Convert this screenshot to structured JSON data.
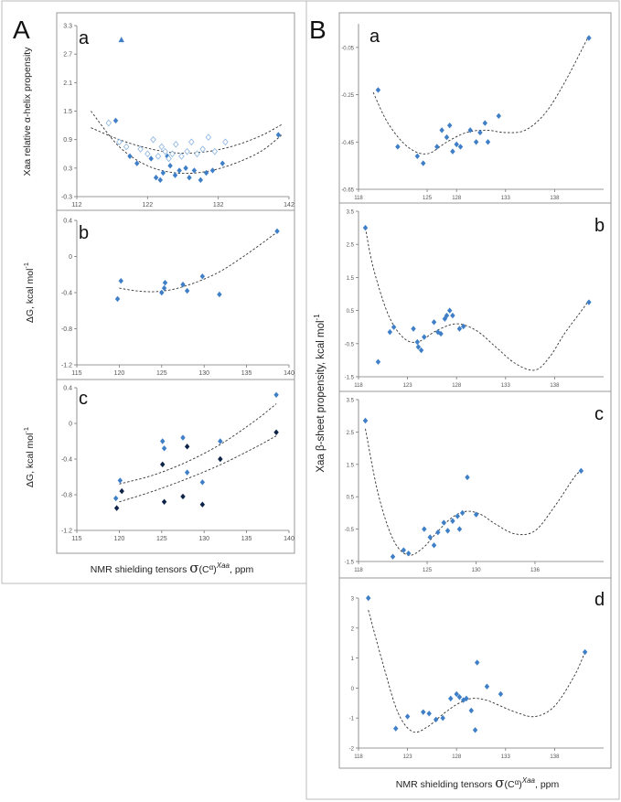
{
  "figure": {
    "panel_A_label": "A",
    "panel_B_label": "B",
    "xlabel_prefix": "NMR shielding tensors ",
    "xlabel_symbol": "σ",
    "xlabel_inner": "(C",
    "xlabel_alpha": "α",
    "xlabel_close": ")",
    "xlabel_sup": "Xaa",
    "xlabel_suffix": ", ppm",
    "B_ylabel_main": "Xaa β-sheet propensity, kcal mol",
    "B_ylabel_sup": "-1"
  },
  "colors": {
    "marker": "#3f7fc7",
    "marker_light": "#8ab4e0",
    "marker_dark": "#0d2347",
    "line": "#333333",
    "frame": "#bbbbbb"
  },
  "chart_data": [
    {
      "id": "Aa",
      "type": "scatter",
      "subplot_letter": "a",
      "ylabel": "Xaa relative α-helix propensity",
      "xlim": [
        112,
        142
      ],
      "ylim": [
        -0.3,
        3.3
      ],
      "xticks": [
        112,
        122,
        132,
        142
      ],
      "xtick_labels": [
        "112",
        "122",
        "132",
        "142"
      ],
      "yticks": [
        -0.3,
        0.3,
        0.9,
        1.5,
        2.1,
        2.7,
        3.3
      ],
      "ytick_labels": [
        "-0.3",
        "0.3",
        "0.9",
        "1.5",
        "2.1",
        "2.7",
        "3.3"
      ],
      "series": [
        {
          "name": "filled",
          "style": "diamond",
          "x": [
            117.5,
            119.5,
            120.5,
            122.5,
            123.2,
            123.8,
            124.2,
            124.8,
            125.2,
            125.9,
            126.5,
            127.4,
            127.9,
            128.6,
            129.5,
            130.3,
            131.2,
            132.6,
            140.5
          ],
          "y": [
            1.3,
            0.55,
            0.4,
            0.5,
            0.1,
            0.05,
            0.2,
            0.55,
            0.35,
            0.15,
            0.25,
            0.3,
            0.1,
            0.25,
            0.05,
            0.2,
            0.25,
            0.4,
            1.0
          ]
        },
        {
          "name": "open",
          "style": "open-diamond",
          "x": [
            116.5,
            118.0,
            119.0,
            121.0,
            122.0,
            122.8,
            123.5,
            124.0,
            124.5,
            125.0,
            125.5,
            126.0,
            126.8,
            127.6,
            128.2,
            129.0,
            129.8,
            130.6,
            131.5,
            133.0
          ],
          "y": [
            1.25,
            0.85,
            0.75,
            0.7,
            0.6,
            0.9,
            0.55,
            0.75,
            0.65,
            0.5,
            0.6,
            0.8,
            0.55,
            0.65,
            0.85,
            0.6,
            0.7,
            0.95,
            0.65,
            0.85
          ]
        },
        {
          "name": "outlier",
          "style": "triangle",
          "x": [
            118.3
          ],
          "y": [
            3.0
          ]
        }
      ],
      "fits": [
        {
          "x": [
            114,
            118,
            122,
            126,
            130,
            134,
            138,
            141
          ],
          "y": [
            1.5,
            0.75,
            0.35,
            0.2,
            0.22,
            0.38,
            0.65,
            1.0
          ]
        },
        {
          "x": [
            114,
            118,
            122,
            126,
            130,
            134,
            138,
            141
          ],
          "y": [
            1.15,
            0.9,
            0.72,
            0.62,
            0.64,
            0.76,
            0.98,
            1.22
          ]
        }
      ]
    },
    {
      "id": "Ab",
      "type": "scatter",
      "subplot_letter": "b",
      "ylabel_main": "ΔG, kcal mol",
      "ylabel_sup": "-1",
      "xlim": [
        115,
        140
      ],
      "ylim": [
        -1.2,
        0.4
      ],
      "xticks": [
        115,
        120,
        125,
        130,
        135,
        140
      ],
      "xtick_labels": [
        "115",
        "120",
        "125",
        "130",
        "135",
        "140"
      ],
      "yticks": [
        -1.2,
        -0.8,
        -0.4,
        0,
        0.4
      ],
      "ytick_labels": [
        "-1.2",
        "-0.8",
        "-0.4",
        "0",
        "0.4"
      ],
      "series": [
        {
          "name": "data",
          "style": "diamond",
          "x": [
            119.8,
            120.2,
            125.0,
            125.3,
            125.4,
            127.5,
            128.0,
            129.8,
            131.8,
            138.6
          ],
          "y": [
            -0.47,
            -0.27,
            -0.4,
            -0.35,
            -0.29,
            -0.31,
            -0.38,
            -0.22,
            -0.42,
            0.28
          ]
        }
      ],
      "fits": [
        {
          "x": [
            120,
            122,
            124,
            126,
            128,
            130,
            132,
            134,
            136,
            138.6
          ],
          "y": [
            -0.35,
            -0.38,
            -0.39,
            -0.37,
            -0.32,
            -0.25,
            -0.16,
            -0.04,
            0.09,
            0.27
          ]
        }
      ]
    },
    {
      "id": "Ac",
      "type": "scatter",
      "subplot_letter": "c",
      "ylabel_main": "ΔG, kcal mol",
      "ylabel_sup": "-1",
      "xlim": [
        115,
        140
      ],
      "ylim": [
        -1.2,
        0.4
      ],
      "xticks": [
        115,
        120,
        125,
        130,
        135,
        140
      ],
      "xtick_labels": [
        "115",
        "120",
        "125",
        "130",
        "135",
        "140"
      ],
      "yticks": [
        -1.2,
        -0.8,
        -0.4,
        0,
        0.4
      ],
      "ytick_labels": [
        "-1.2",
        "-0.8",
        "-0.4",
        "0",
        "0.4"
      ],
      "series": [
        {
          "name": "light",
          "style": "diamond",
          "x": [
            119.6,
            120.1,
            125.1,
            125.3,
            127.5,
            128.0,
            129.8,
            131.9,
            138.5
          ],
          "y": [
            -0.84,
            -0.64,
            -0.2,
            -0.28,
            -0.16,
            -0.55,
            -0.66,
            -0.2,
            0.32
          ]
        },
        {
          "name": "dark",
          "style": "diamond-dark",
          "x": [
            119.7,
            120.3,
            125.1,
            125.3,
            127.5,
            128.0,
            129.8,
            131.9,
            138.5
          ],
          "y": [
            -0.95,
            -0.76,
            -0.46,
            -0.88,
            -0.82,
            -0.26,
            -0.91,
            -0.4,
            -0.1
          ]
        }
      ],
      "fits": [
        {
          "x": [
            120,
            124,
            128,
            132,
            136,
            138.5
          ],
          "y": [
            -0.68,
            -0.58,
            -0.43,
            -0.23,
            0.03,
            0.22
          ]
        },
        {
          "x": [
            120,
            124,
            128,
            132,
            136,
            138.5
          ],
          "y": [
            -0.88,
            -0.76,
            -0.62,
            -0.46,
            -0.27,
            -0.14
          ]
        }
      ]
    },
    {
      "id": "Ba",
      "type": "scatter",
      "subplot_letter": "a",
      "xlim": [
        118,
        143
      ],
      "ylim": [
        -0.65,
        0.05
      ],
      "xticks": [
        118,
        125,
        128,
        133,
        138
      ],
      "xtick_labels": [
        "118",
        "125",
        "128",
        "133",
        "138"
      ],
      "yticks": [
        -0.65,
        -0.45,
        -0.25,
        -0.05
      ],
      "ytick_labels": [
        "-0.65",
        "-0.45",
        "-0.25",
        "-0.05"
      ],
      "series": [
        {
          "name": "data",
          "style": "diamond",
          "x": [
            120.0,
            122.0,
            124.0,
            124.6,
            126.0,
            126.5,
            127.0,
            127.3,
            127.6,
            128.0,
            128.4,
            129.4,
            130.0,
            130.4,
            130.9,
            131.2,
            132.3,
            141.5
          ],
          "y": [
            -0.23,
            -0.47,
            -0.51,
            -0.54,
            -0.47,
            -0.4,
            -0.43,
            -0.38,
            -0.49,
            -0.46,
            -0.47,
            -0.4,
            -0.45,
            -0.41,
            -0.37,
            -0.45,
            -0.34,
            -0.01
          ]
        }
      ],
      "fits": [
        {
          "x": [
            119.5,
            121,
            123,
            125,
            127,
            129,
            131,
            133,
            135,
            137,
            139,
            141.5
          ],
          "y": [
            -0.24,
            -0.37,
            -0.47,
            -0.5,
            -0.45,
            -0.41,
            -0.4,
            -0.41,
            -0.4,
            -0.33,
            -0.2,
            0.0
          ]
        }
      ]
    },
    {
      "id": "Bb",
      "type": "scatter",
      "subplot_letter": "b",
      "xlim": [
        118,
        143
      ],
      "ylim": [
        -1.5,
        3.5
      ],
      "xticks": [
        118,
        123,
        128,
        133,
        138
      ],
      "xtick_labels": [
        "118",
        "123",
        "128",
        "133",
        "138"
      ],
      "yticks": [
        -1.5,
        -0.5,
        0.5,
        1.5,
        2.5,
        3.5
      ],
      "ytick_labels": [
        "-1.5",
        "-0.5",
        "0.5",
        "1.5",
        "2.5",
        "3.5"
      ],
      "series": [
        {
          "name": "data",
          "style": "diamond",
          "x": [
            118.7,
            120.0,
            121.2,
            121.6,
            123.6,
            124.0,
            124.1,
            124.4,
            124.7,
            125.7,
            126.1,
            126.4,
            126.8,
            127.0,
            127.3,
            127.6,
            128.3,
            128.7,
            141.5
          ],
          "y": [
            3.0,
            -1.05,
            -0.15,
            0.0,
            -0.05,
            -0.45,
            -0.6,
            -0.7,
            -0.3,
            0.15,
            -0.15,
            -0.2,
            0.25,
            0.35,
            0.5,
            0.35,
            -0.05,
            0.02,
            0.75
          ]
        }
      ],
      "fits": [
        {
          "x": [
            118.7,
            119.5,
            121,
            122.5,
            124,
            126,
            128,
            130,
            132,
            134,
            136,
            137.5,
            139,
            140.5,
            141.5
          ],
          "y": [
            3.0,
            1.8,
            0.4,
            -0.3,
            -0.45,
            -0.1,
            0.1,
            -0.1,
            -0.6,
            -1.1,
            -1.3,
            -0.9,
            -0.2,
            0.4,
            0.8
          ]
        }
      ]
    },
    {
      "id": "Bc",
      "type": "scatter",
      "subplot_letter": "c",
      "xlim": [
        118,
        143
      ],
      "ylim": [
        -1.5,
        3.5
      ],
      "xticks": [
        118,
        125,
        130,
        136
      ],
      "xtick_labels": [
        "118",
        "125",
        "130",
        "136"
      ],
      "yticks": [
        -1.5,
        -0.5,
        0.5,
        1.5,
        2.5,
        3.5
      ],
      "ytick_labels": [
        "-1.5",
        "-0.5",
        "0.5",
        "1.5",
        "2.5",
        "3.5"
      ],
      "series": [
        {
          "name": "data",
          "style": "diamond",
          "x": [
            118.7,
            121.5,
            122.6,
            123.1,
            124.7,
            125.3,
            125.7,
            126.1,
            126.7,
            127.1,
            127.6,
            128.1,
            128.3,
            128.6,
            129.1,
            130.0,
            140.7
          ],
          "y": [
            2.85,
            -1.35,
            -1.15,
            -1.25,
            -0.5,
            -0.75,
            -1.0,
            -0.6,
            -0.3,
            -0.55,
            -0.25,
            -0.1,
            -0.5,
            0.0,
            1.1,
            -0.05,
            1.3
          ]
        }
      ],
      "fits": [
        {
          "x": [
            118.7,
            120,
            121.5,
            123,
            124.5,
            126,
            127.5,
            129,
            130.5,
            132,
            134,
            136,
            138,
            140,
            140.7
          ],
          "y": [
            2.6,
            0.6,
            -0.8,
            -1.3,
            -1.1,
            -0.6,
            -0.15,
            0.05,
            -0.05,
            -0.35,
            -0.65,
            -0.55,
            0.2,
            1.1,
            1.3
          ]
        }
      ]
    },
    {
      "id": "Bd",
      "type": "scatter",
      "subplot_letter": "d",
      "xlim": [
        118,
        143
      ],
      "ylim": [
        -2,
        3
      ],
      "xticks": [
        118,
        123,
        128,
        133,
        138
      ],
      "xtick_labels": [
        "118",
        "123",
        "128",
        "133",
        "138"
      ],
      "yticks": [
        -2,
        -1,
        0,
        1,
        2,
        3
      ],
      "ytick_labels": [
        "-2",
        "-1",
        "0",
        "1",
        "2",
        "3"
      ],
      "series": [
        {
          "name": "data",
          "style": "diamond",
          "x": [
            119.0,
            121.8,
            123.0,
            124.6,
            125.2,
            125.9,
            126.6,
            127.4,
            128.0,
            128.3,
            128.7,
            129.0,
            129.5,
            129.9,
            130.1,
            131.1,
            132.5,
            141.1
          ],
          "y": [
            3.0,
            -1.35,
            -0.95,
            -0.8,
            -0.85,
            -1.05,
            -1.0,
            -0.35,
            -0.2,
            -0.3,
            -0.4,
            -0.35,
            -0.75,
            -1.4,
            0.85,
            0.05,
            -0.2,
            1.2
          ]
        }
      ],
      "fits": [
        {
          "x": [
            119.0,
            120.5,
            122,
            123.5,
            125,
            126.5,
            128,
            129.5,
            131,
            132.5,
            134,
            136,
            138,
            140,
            141.1
          ],
          "y": [
            2.6,
            0.8,
            -0.8,
            -1.45,
            -1.3,
            -0.9,
            -0.55,
            -0.35,
            -0.4,
            -0.6,
            -0.8,
            -0.95,
            -0.6,
            0.4,
            1.2
          ]
        }
      ]
    }
  ]
}
